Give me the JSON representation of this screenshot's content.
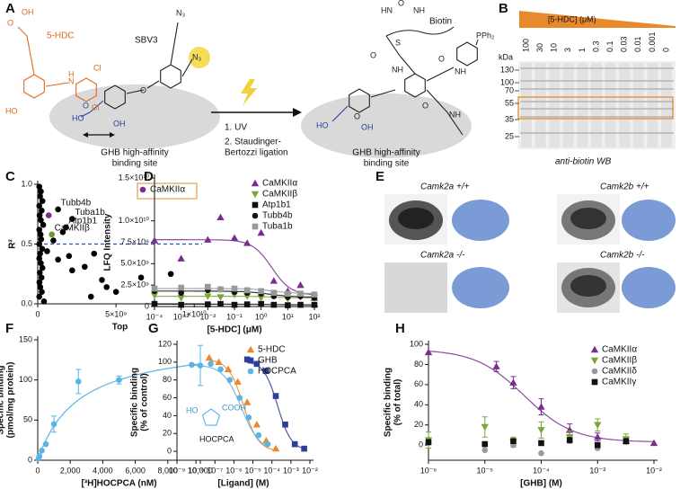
{
  "panel_a": {
    "letter": "A",
    "compound": "5-HDC",
    "probe": "SBV3",
    "biotin": "Biotin",
    "site": [
      "GHB high-affinity",
      "binding site"
    ],
    "steps": [
      "1. UV",
      "2. Staudinger-",
      "Bertozzi ligation"
    ],
    "atoms": [
      "OH",
      "O",
      "HO",
      "H",
      "N",
      "Cl",
      "Cl",
      "N₃",
      "N₃",
      "O",
      "HO",
      "OH",
      "O",
      "HN",
      "NH",
      "O",
      "S",
      "O",
      "NH",
      "NH",
      "O",
      "PPh₂",
      "O",
      "HO",
      "OH",
      "NH",
      "O"
    ]
  },
  "panel_b": {
    "letter": "B",
    "gradient_label": "[5-HDC] (μM)",
    "concentrations": [
      100,
      30,
      10,
      3,
      1,
      0.3,
      0.1,
      0.03,
      0.01,
      0.001,
      0
    ],
    "unit": "kDa",
    "markers": [
      130,
      100,
      70,
      55,
      35,
      25
    ],
    "caption": "anti-biotin WB"
  },
  "panel_e": {
    "letter": "E",
    "labels": [
      "Camk2a +/+",
      "Camk2b +/+",
      "Camk2a -/-",
      "Camk2b -/-"
    ]
  },
  "chart_data": [
    {
      "panel": "C",
      "type": "scatter",
      "xlabel": "Top",
      "ylabel": "R²",
      "xlim": [
        0,
        10500000000.0
      ],
      "ylim": [
        0,
        1
      ],
      "xticks": [
        0,
        {
          "value": 5000000000.0,
          "label": "5×10⁹"
        },
        {
          "value": 10000000000.0,
          "label": "1×10¹⁰"
        }
      ],
      "yticks": [
        {
          "value": 0,
          "label": "0.0"
        },
        {
          "value": 0.5,
          "label": "0.5"
        },
        {
          "value": 1,
          "label": "1.0"
        }
      ],
      "threshold": {
        "value": 0.5,
        "color": "#2a4fb8"
      },
      "series": [
        {
          "color": "#000000",
          "marker": "circle",
          "x": [
            100000000.0,
            200000000.0,
            150000000.0,
            300000000.0,
            100000000.0,
            250000000.0,
            120000000.0,
            200000000.0,
            350000000.0,
            100000000.0,
            180000000.0,
            220000000.0,
            100000000.0,
            280000000.0,
            150000000.0,
            100000000.0,
            200000000.0,
            300000000.0,
            130000000.0,
            240000000.0,
            110000000.0,
            160000000.0,
            260000000.0,
            100000000.0,
            400000000.0,
            600000000.0,
            1000000000.0,
            1300000000.0,
            1600000000.0,
            2000000000.0,
            2200000000.0,
            3000000000.0,
            3400000000.0,
            3600000000.0,
            4100000000.0,
            4400000000.0,
            5000000000.0,
            6600000000.0,
            8500000000.0
          ],
          "values": [
            0.98,
            0.94,
            0.9,
            0.86,
            0.82,
            0.78,
            0.74,
            0.7,
            0.66,
            0.62,
            0.58,
            0.54,
            0.5,
            0.46,
            0.42,
            0.38,
            0.34,
            0.3,
            0.26,
            0.22,
            0.18,
            0.14,
            0.1,
            0.06,
            0.02,
            0.44,
            0.53,
            0.37,
            0.6,
            0.4,
            0.28,
            0.31,
            0.06,
            0.42,
            0.2,
            0.14,
            0.1,
            0.22,
            0.25
          ]
        },
        {
          "name": "CaMKIIα",
          "color": "#7b2d8e",
          "marker": "circle",
          "x": [
            700000000.0
          ],
          "values": [
            0.74
          ]
        }
      ],
      "point_labels": [
        {
          "label": "Tubb4b",
          "x": 1300000000.0,
          "y": 0.79,
          "color": "#000000"
        },
        {
          "label": "Tuba1b",
          "x": 2200000000.0,
          "y": 0.71,
          "color": "#000000"
        },
        {
          "label": "Atp1b1",
          "x": 1800000000.0,
          "y": 0.64,
          "color": "#000000"
        },
        {
          "label": "CaMKIIβ",
          "x": 900000000.0,
          "y": 0.58,
          "color": "#6a9a2a"
        }
      ],
      "legend": "upper right",
      "legend_box_color": "#e08a2c"
    },
    {
      "panel": "D",
      "type": "scatter",
      "xlog": true,
      "fit_model": "sigmoid",
      "xlabel": "[5-HDC] (μM)",
      "ylabel": "LFQ Intensity",
      "xlim": [
        0.0001,
        100
      ],
      "ylim": [
        0,
        15000000000.0
      ],
      "xticks": [
        {
          "value": 0.0001,
          "label": "10⁻⁴"
        },
        {
          "value": 0.001,
          "label": "10⁻³"
        },
        {
          "value": 0.01,
          "label": "10⁻²"
        },
        {
          "value": 0.1,
          "label": "10⁻¹"
        },
        {
          "value": 1,
          "label": "10⁰"
        },
        {
          "value": 10,
          "label": "10¹"
        },
        {
          "value": 100,
          "label": "10²"
        }
      ],
      "yticks": [
        0,
        {
          "value": 2500000000.0,
          "label": "2.5×10⁹"
        },
        {
          "value": 5000000000.0,
          "label": "5.0×10⁹"
        },
        {
          "value": 7500000000.0,
          "label": "7.5×10⁹"
        },
        {
          "value": 10000000000.0,
          "label": "1.0×10¹⁰"
        },
        {
          "value": 15000000000.0,
          "label": "1.5×10¹⁰"
        }
      ],
      "series": [
        {
          "name": "CaMKIIα",
          "color": "#7b2d8e",
          "marker": "triangle",
          "x": [
            0.0001,
            0.001,
            0.01,
            0.03,
            0.1,
            0.3,
            1,
            3,
            10,
            30,
            100
          ],
          "values": [
            7700000000.0,
            5600000000.0,
            7800000000.0,
            10400000000.0,
            8000000000.0,
            7400000000.0,
            8600000000.0,
            3000000000.0,
            1800000000.0,
            2500000000.0,
            1000000000.0
          ],
          "fit": {
            "top": 7800000000.0,
            "bottom": 1300000000.0,
            "log_ec50": 0.4,
            "hill": 1.2
          }
        },
        {
          "name": "CaMKIIβ",
          "color": "#7aa63a",
          "marker": "triangle-down",
          "x": [
            0.0001,
            0.001,
            0.01,
            0.03,
            0.1,
            0.3,
            1,
            3,
            10,
            30,
            100
          ],
          "values": [
            1300000000.0,
            1000000000.0,
            1200000000.0,
            1100000000.0,
            1400000000.0,
            1200000000.0,
            1000000000.0,
            1300000000.0,
            900000000.0,
            1100000000.0,
            1000000000.0
          ],
          "fit": {
            "top": 1200000000.0,
            "bottom": 1000000000.0,
            "log_ec50": 0.5,
            "hill": 1
          }
        },
        {
          "name": "Atp1b1",
          "color": "#111111",
          "marker": "square",
          "x": [
            0.0001,
            0.001,
            0.01,
            0.03,
            0.1,
            0.3,
            1,
            3,
            10,
            30,
            100
          ],
          "values": [
            300000000.0,
            200000000.0,
            250000000.0,
            300000000.0,
            200000000.0,
            250000000.0,
            300000000.0,
            200000000.0,
            150000000.0,
            200000000.0,
            200000000.0
          ],
          "fit": {
            "top": 270000000.0,
            "bottom": 200000000.0,
            "log_ec50": 0.5,
            "hill": 1
          }
        },
        {
          "name": "Tubb4b",
          "color": "#111111",
          "marker": "circle",
          "x": [
            0.0001,
            0.001,
            0.01,
            0.03,
            0.1,
            0.3,
            1,
            3,
            10,
            30,
            100
          ],
          "values": [
            1800000000.0,
            1600000000.0,
            1900000000.0,
            2000000000.0,
            1700000000.0,
            1600000000.0,
            1500000000.0,
            1200000000.0,
            1100000000.0,
            1200000000.0,
            1000000000.0
          ],
          "fit": {
            "top": 1800000000.0,
            "bottom": 1100000000.0,
            "log_ec50": 0.3,
            "hill": 1
          }
        },
        {
          "name": "Tuba1b",
          "color": "#999999",
          "marker": "square",
          "x": [
            0.0001,
            0.001,
            0.01,
            0.03,
            0.1,
            0.3,
            1,
            3,
            10,
            30,
            100
          ],
          "values": [
            2100000000.0,
            2200000000.0,
            2300000000.0,
            2000000000.0,
            2100000000.0,
            1900000000.0,
            1800000000.0,
            1600000000.0,
            1500000000.0,
            1500000000.0,
            1400000000.0
          ],
          "fit": {
            "top": 2100000000.0,
            "bottom": 1500000000.0,
            "log_ec50": 0.5,
            "hill": 1
          }
        }
      ],
      "legend": "upper right"
    },
    {
      "panel": "F",
      "type": "scatter",
      "fit_model": "hyperbola",
      "xlabel": "[³H]HOCPCA (nM)",
      "ylabel": [
        "Specific binding",
        "(pmol/mg protein)"
      ],
      "xlim": [
        0,
        10000
      ],
      "ylim": [
        0,
        150
      ],
      "xticks": [
        0,
        {
          "value": 2000,
          "label": "2,000"
        },
        {
          "value": 4000,
          "label": "4,000"
        },
        {
          "value": 6000,
          "label": "6,000"
        },
        {
          "value": 8000,
          "label": "8,000"
        },
        {
          "value": 10000,
          "label": "10,000"
        }
      ],
      "yticks": [
        0,
        50,
        100,
        150
      ],
      "series": [
        {
          "color": "#5ab4e5",
          "marker": "circle",
          "x": [
            50,
            100,
            250,
            500,
            1000,
            2500,
            5000,
            10000
          ],
          "values": [
            2,
            5,
            12,
            20,
            45,
            98,
            100,
            118
          ],
          "errors": [
            null,
            null,
            null,
            null,
            10,
            15,
            5,
            25
          ],
          "fit": {
            "bmax": 150,
            "kd": 2500
          }
        }
      ]
    },
    {
      "panel": "G",
      "type": "scatter",
      "xlog": true,
      "fit_model": "sigmoid",
      "xlabel": "[Ligand] (M)",
      "ylabel": [
        "Specific binding",
        "(% of control)"
      ],
      "xlim": [
        1e-09,
        0.01
      ],
      "ylim": [
        -10,
        120
      ],
      "xticks": [
        {
          "value": 1e-09,
          "label": "10⁻⁹"
        },
        {
          "value": 1e-08,
          "label": "10⁻⁸"
        },
        {
          "value": 1e-07,
          "label": "10⁻⁷"
        },
        {
          "value": 1e-06,
          "label": "10⁻⁶"
        },
        {
          "value": 1e-05,
          "label": "10⁻⁵"
        },
        {
          "value": 0.0001,
          "label": "10⁻⁴"
        },
        {
          "value": 0.001,
          "label": "10⁻³"
        },
        {
          "value": 0.01,
          "label": "10⁻²"
        }
      ],
      "yticks": [
        0,
        20,
        40,
        60,
        80,
        100,
        120
      ],
      "series": [
        {
          "name": "5-HDC",
          "color": "#e8892e",
          "marker": "triangle",
          "x": [
            5e-08,
            1.6e-07,
            5e-07,
            1.6e-06,
            5e-06,
            1.6e-05,
            5e-05,
            0.00016
          ],
          "values": [
            105,
            100,
            92,
            78,
            55,
            30,
            12,
            3
          ],
          "fit": {
            "top": 103,
            "bottom": 0,
            "log_ec50": -5.5,
            "hill": 1.1
          }
        },
        {
          "name": "GHB",
          "color": "#2c3e96",
          "marker": "square",
          "x": [
            5e-06,
            1.6e-05,
            5e-05,
            0.00016,
            0.0005,
            0.0016,
            0.005
          ],
          "values": [
            103,
            98,
            90,
            62,
            30,
            8,
            3
          ],
          "fit": {
            "top": 101,
            "bottom": 1,
            "log_ec50": -3.7,
            "hill": 1.2
          }
        },
        {
          "name": "HOCPCA",
          "color": "#5ab4e5",
          "marker": "circle",
          "x": [
            6e-09,
            6e-08,
            2e-07,
            6e-07,
            2e-06,
            6e-06,
            2e-05,
            6e-05
          ],
          "values": [
            97,
            98,
            92,
            80,
            60,
            38,
            18,
            8
          ],
          "fit": {
            "top": 97,
            "bottom": 0,
            "log_ec50": -5.6,
            "hill": 0.9
          }
        }
      ],
      "inset_labels": [
        "HO",
        "COOH",
        "HOCPCA"
      ],
      "legend": "upper right"
    },
    {
      "panel": "H",
      "type": "scatter",
      "xlog": true,
      "fit_model": "sigmoid",
      "xlabel": "[GHB] (M)",
      "ylabel": [
        "Specific binding",
        "(% of total)"
      ],
      "xlim": [
        1e-06,
        0.01
      ],
      "ylim": [
        -15,
        100
      ],
      "xticks": [
        {
          "value": 1e-06,
          "label": "10⁻⁶"
        },
        {
          "value": 1e-05,
          "label": "10⁻⁵"
        },
        {
          "value": 0.0001,
          "label": "10⁻⁴"
        },
        {
          "value": 0.001,
          "label": "10⁻³"
        },
        {
          "value": 0.01,
          "label": "10⁻²"
        }
      ],
      "yticks": [
        0,
        20,
        40,
        60,
        80,
        100
      ],
      "series": [
        {
          "name": "CaMKIIα",
          "color": "#7b2d8e",
          "marker": "triangle",
          "x": [
            1e-06,
            1.6e-05,
            3.2e-05,
            0.0001,
            0.00032,
            0.001,
            0.0032,
            0.01
          ],
          "values": [
            92,
            78,
            62,
            38,
            15,
            8,
            4,
            2
          ],
          "errors": [
            null,
            5,
            6,
            8,
            6,
            4,
            3,
            null
          ],
          "fit": {
            "top": 95,
            "bottom": 3,
            "log_ec50": -4.3,
            "hill": 1
          }
        },
        {
          "name": "CaMKIIβ",
          "color": "#7aa63a",
          "marker": "triangle-down",
          "x": [
            1e-06,
            1e-05,
            3.2e-05,
            0.0001,
            0.00032,
            0.001,
            0.0032
          ],
          "values": [
            5,
            18,
            3,
            15,
            8,
            20,
            6
          ],
          "errors": [
            8,
            10,
            5,
            8,
            6,
            6,
            5
          ]
        },
        {
          "name": "CaMKIIδ",
          "color": "#999999",
          "marker": "circle",
          "x": [
            1e-06,
            1e-05,
            3.2e-05,
            0.0001,
            0.00032,
            0.001,
            0.0032
          ],
          "values": [
            2,
            -5,
            0,
            -8,
            4,
            -3,
            3
          ]
        },
        {
          "name": "CaMKIIγ",
          "color": "#111111",
          "marker": "square",
          "x": [
            1e-06,
            1e-05,
            3.2e-05,
            0.0001,
            0.00032,
            0.001,
            0.0032
          ],
          "values": [
            3,
            1,
            4,
            2,
            5,
            0,
            4
          ]
        }
      ],
      "legend": "upper right"
    }
  ]
}
